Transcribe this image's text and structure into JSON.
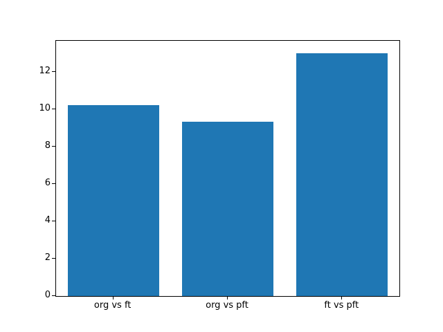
{
  "chart_data": {
    "type": "bar",
    "categories": [
      "org vs ft",
      "org vs pft",
      "ft vs pft"
    ],
    "values": [
      10.2,
      9.33,
      13.0
    ],
    "title": "",
    "xlabel": "",
    "ylabel": "",
    "ylim": [
      0,
      13.65
    ],
    "yticks": [
      0,
      2,
      4,
      6,
      8,
      10,
      12
    ],
    "bar_color": "#1f77b4",
    "bar_width_fraction": 0.8,
    "background_color": "#ffffff",
    "spine_color": "#000000",
    "grid": false,
    "legend": "none"
  }
}
